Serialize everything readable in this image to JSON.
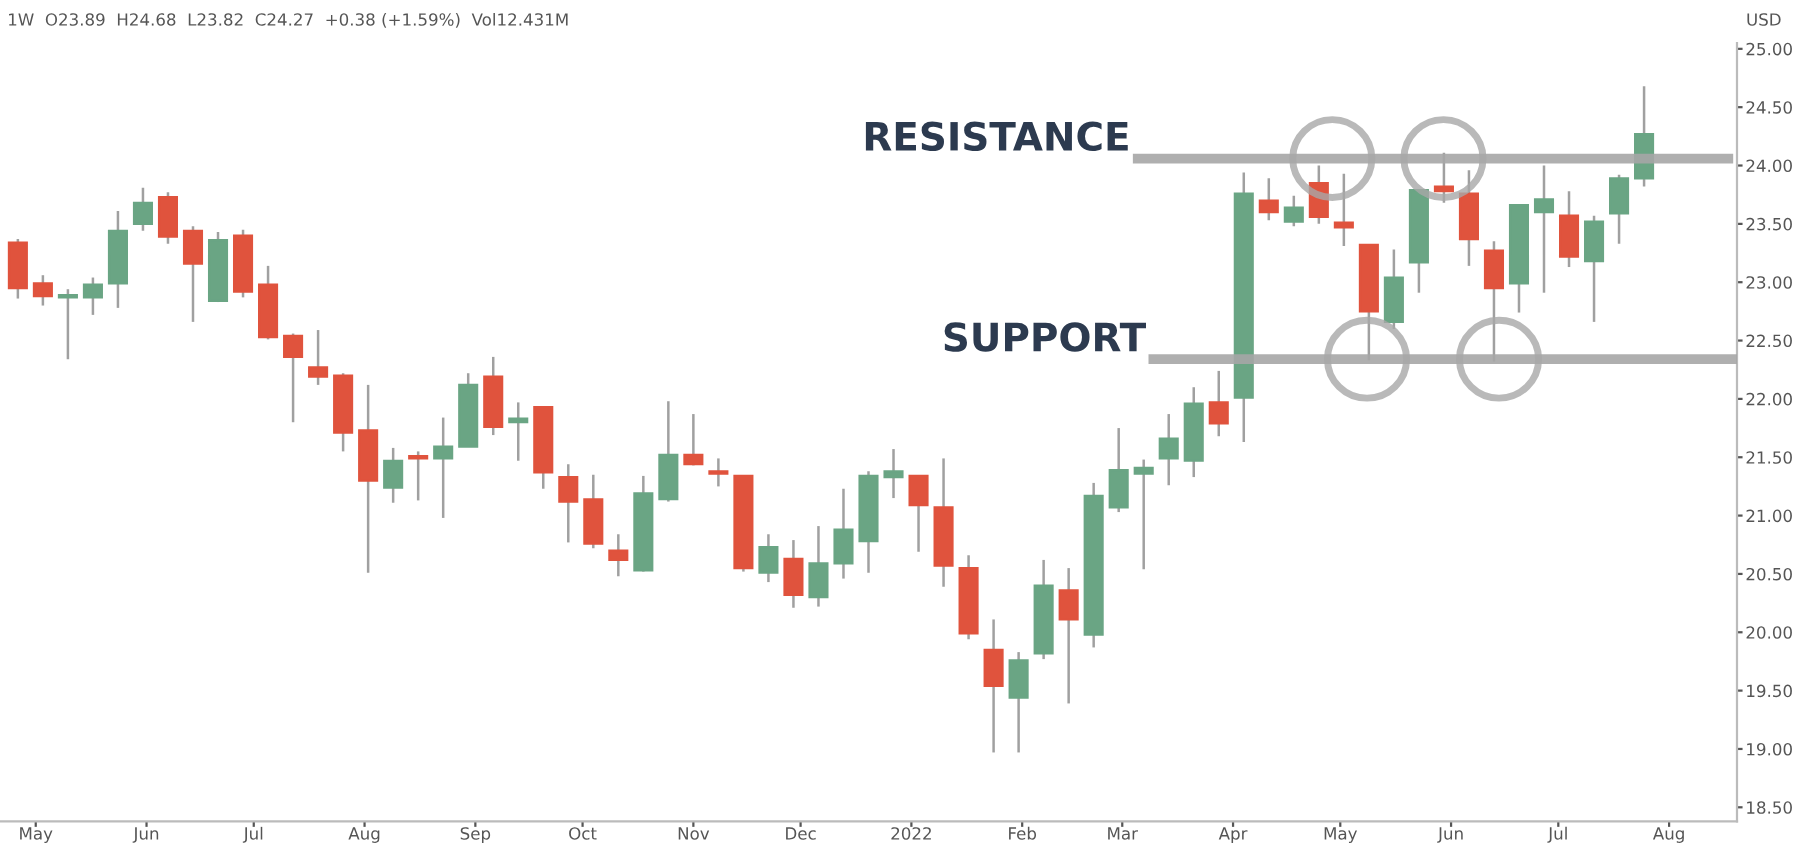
{
  "chart_data": {
    "type": "candlestick",
    "title": "1W  O23.89  H24.68  L23.82  C24.27  +0.38 (+1.59%)  Vol12.431M",
    "ylabel": "USD",
    "x": [
      "2021-04-26",
      "2021-05-03",
      "2021-05-10",
      "2021-05-17",
      "2021-05-24",
      "2021-05-31",
      "2021-06-07",
      "2021-06-14",
      "2021-06-21",
      "2021-06-28",
      "2021-07-05",
      "2021-07-12",
      "2021-07-19",
      "2021-07-26",
      "2021-08-02",
      "2021-08-09",
      "2021-08-16",
      "2021-08-23",
      "2021-08-30",
      "2021-09-06",
      "2021-09-13",
      "2021-09-20",
      "2021-09-27",
      "2021-10-04",
      "2021-10-11",
      "2021-10-18",
      "2021-10-25",
      "2021-11-01",
      "2021-11-08",
      "2021-11-15",
      "2021-11-22",
      "2021-11-29",
      "2021-12-06",
      "2021-12-13",
      "2021-12-20",
      "2021-12-27",
      "2022-01-03",
      "2022-01-10",
      "2022-01-17",
      "2022-01-24",
      "2022-01-31",
      "2022-02-07",
      "2022-02-14",
      "2022-02-21",
      "2022-02-28",
      "2022-03-07",
      "2022-03-14",
      "2022-03-21",
      "2022-03-28",
      "2022-04-04",
      "2022-04-11",
      "2022-04-18",
      "2022-04-25",
      "2022-05-02",
      "2022-05-09",
      "2022-05-16",
      "2022-05-23",
      "2022-05-30",
      "2022-06-06",
      "2022-06-13",
      "2022-06-20",
      "2022-06-27",
      "2022-07-04",
      "2022-07-11",
      "2022-07-18",
      "2022-07-25"
    ],
    "ohlc": [
      [
        23.34,
        23.37,
        22.86,
        22.95
      ],
      [
        22.99,
        23.06,
        22.8,
        22.88
      ],
      [
        22.87,
        22.94,
        22.34,
        22.88
      ],
      [
        22.87,
        23.04,
        22.72,
        22.98
      ],
      [
        22.99,
        23.61,
        22.78,
        23.44
      ],
      [
        23.5,
        23.81,
        23.44,
        23.68
      ],
      [
        23.73,
        23.77,
        23.33,
        23.39
      ],
      [
        23.44,
        23.48,
        22.66,
        23.16
      ],
      [
        22.84,
        23.43,
        22.83,
        23.36
      ],
      [
        23.4,
        23.45,
        22.87,
        22.92
      ],
      [
        22.98,
        23.14,
        22.51,
        22.53
      ],
      [
        22.54,
        22.56,
        21.8,
        22.36
      ],
      [
        22.27,
        22.59,
        22.12,
        22.19
      ],
      [
        22.2,
        22.22,
        21.55,
        21.71
      ],
      [
        21.73,
        22.12,
        20.51,
        21.3
      ],
      [
        21.24,
        21.58,
        21.11,
        21.47
      ],
      [
        21.51,
        21.55,
        21.13,
        21.49
      ],
      [
        21.49,
        21.84,
        20.98,
        21.59
      ],
      [
        21.59,
        22.22,
        21.59,
        22.12
      ],
      [
        22.19,
        22.36,
        21.69,
        21.76
      ],
      [
        21.8,
        21.97,
        21.47,
        21.83
      ],
      [
        21.93,
        21.93,
        21.23,
        21.37
      ],
      [
        21.33,
        21.44,
        20.77,
        21.12
      ],
      [
        21.14,
        21.35,
        20.72,
        20.76
      ],
      [
        20.7,
        20.84,
        20.48,
        20.62
      ],
      [
        20.53,
        21.34,
        20.52,
        21.19
      ],
      [
        21.14,
        21.98,
        21.12,
        21.52
      ],
      [
        21.52,
        21.87,
        21.43,
        21.44
      ],
      [
        21.38,
        21.49,
        21.25,
        21.36
      ],
      [
        21.34,
        21.34,
        20.52,
        20.55
      ],
      [
        20.51,
        20.84,
        20.43,
        20.73
      ],
      [
        20.63,
        20.79,
        20.21,
        20.32
      ],
      [
        20.3,
        20.91,
        20.22,
        20.59
      ],
      [
        20.59,
        21.23,
        20.46,
        20.88
      ],
      [
        20.78,
        21.38,
        20.51,
        21.34
      ],
      [
        21.33,
        21.57,
        21.15,
        21.38
      ],
      [
        21.34,
        21.34,
        20.69,
        21.09
      ],
      [
        21.07,
        21.49,
        20.39,
        20.57
      ],
      [
        20.55,
        20.66,
        19.94,
        19.99
      ],
      [
        19.85,
        20.11,
        18.97,
        19.54
      ],
      [
        19.44,
        19.83,
        18.97,
        19.76
      ],
      [
        19.82,
        20.62,
        19.77,
        20.4
      ],
      [
        20.36,
        20.55,
        19.39,
        20.11
      ],
      [
        19.98,
        21.28,
        19.87,
        21.17
      ],
      [
        21.07,
        21.75,
        21.03,
        21.39
      ],
      [
        21.36,
        21.48,
        20.54,
        21.41
      ],
      [
        21.49,
        21.87,
        21.26,
        21.66
      ],
      [
        21.47,
        22.1,
        21.33,
        21.96
      ],
      [
        21.97,
        22.24,
        21.68,
        21.79
      ],
      [
        22.01,
        23.94,
        21.63,
        23.76
      ],
      [
        23.7,
        23.89,
        23.53,
        23.6
      ],
      [
        23.52,
        23.74,
        23.48,
        23.64
      ],
      [
        23.85,
        24.0,
        23.5,
        23.56
      ],
      [
        23.51,
        23.93,
        23.31,
        23.47
      ],
      [
        23.32,
        23.32,
        22.33,
        22.75
      ],
      [
        22.66,
        23.28,
        22.6,
        23.04
      ],
      [
        23.17,
        23.79,
        22.91,
        23.79
      ],
      [
        23.82,
        24.11,
        23.68,
        23.78
      ],
      [
        23.76,
        23.96,
        23.14,
        23.37
      ],
      [
        23.27,
        23.35,
        22.32,
        22.95
      ],
      [
        22.99,
        23.66,
        22.74,
        23.66
      ],
      [
        23.6,
        24.0,
        22.91,
        23.71
      ],
      [
        23.57,
        23.78,
        23.13,
        23.22
      ],
      [
        23.18,
        23.57,
        22.66,
        23.52
      ],
      [
        23.59,
        23.92,
        23.33,
        23.89
      ],
      [
        23.89,
        24.68,
        23.82,
        24.27
      ]
    ],
    "colors": [
      "#e0533d",
      "#e0533d",
      "#6aa584",
      "#6aa584",
      "#6aa584",
      "#6aa584",
      "#e0533d",
      "#e0533d",
      "#6aa584",
      "#e0533d",
      "#e0533d",
      "#e0533d",
      "#e0533d",
      "#e0533d",
      "#e0533d",
      "#6aa584",
      "#e0533d",
      "#6aa584",
      "#6aa584",
      "#e0533d",
      "#6aa584",
      "#e0533d",
      "#e0533d",
      "#e0533d",
      "#e0533d",
      "#6aa584",
      "#6aa584",
      "#e0533d",
      "#e0533d",
      "#e0533d",
      "#6aa584",
      "#e0533d",
      "#6aa584",
      "#6aa584",
      "#6aa584",
      "#6aa584",
      "#e0533d",
      "#e0533d",
      "#e0533d",
      "#e0533d",
      "#6aa584",
      "#6aa584",
      "#e0533d",
      "#6aa584",
      "#6aa584",
      "#6aa584",
      "#6aa584",
      "#6aa584",
      "#e0533d",
      "#6aa584",
      "#e0533d",
      "#6aa584",
      "#e0533d",
      "#e0533d",
      "#e0533d",
      "#6aa584",
      "#6aa584",
      "#e0533d",
      "#e0533d",
      "#e0533d",
      "#6aa584",
      "#6aa584",
      "#e0533d",
      "#6aa584",
      "#6aa584",
      "#6aa584"
    ],
    "xlim": [
      "2021-04-21",
      "2022-08-20"
    ],
    "xticks": [
      {
        "value": "2021-05-01",
        "label": "May"
      },
      {
        "value": "2021-06-01",
        "label": "Jun"
      },
      {
        "value": "2021-07-01",
        "label": "Jul"
      },
      {
        "value": "2021-08-01",
        "label": "Aug"
      },
      {
        "value": "2021-09-01",
        "label": "Sep"
      },
      {
        "value": "2021-10-01",
        "label": "Oct"
      },
      {
        "value": "2021-11-01",
        "label": "Nov"
      },
      {
        "value": "2021-12-01",
        "label": "Dec"
      },
      {
        "value": "2022-01-01",
        "label": "2022"
      },
      {
        "value": "2022-02-01",
        "label": "Feb"
      },
      {
        "value": "2022-03-01",
        "label": "Mar"
      },
      {
        "value": "2022-04-01",
        "label": "Apr"
      },
      {
        "value": "2022-05-01",
        "label": "May"
      },
      {
        "value": "2022-06-01",
        "label": "Jun"
      },
      {
        "value": "2022-07-01",
        "label": "Jul"
      },
      {
        "value": "2022-08-01",
        "label": "Aug"
      }
    ],
    "ylim": [
      18.38,
      25.05
    ],
    "yticks": [
      {
        "value": 18.5,
        "label": "18.50"
      },
      {
        "value": 19,
        "label": "19.00"
      },
      {
        "value": 19.5,
        "label": "19.50"
      },
      {
        "value": 20,
        "label": "20.00"
      },
      {
        "value": 20.5,
        "label": "20.50"
      },
      {
        "value": 21,
        "label": "21.00"
      },
      {
        "value": 21.5,
        "label": "21.50"
      },
      {
        "value": 22,
        "label": "22.00"
      },
      {
        "value": 22.5,
        "label": "22.50"
      },
      {
        "value": 23,
        "label": "23.00"
      },
      {
        "value": 23.5,
        "label": "23.50"
      },
      {
        "value": 24,
        "label": "24.00"
      },
      {
        "value": 24.5,
        "label": "24.50"
      },
      {
        "value": 25,
        "label": "25.00"
      }
    ],
    "ref_lines": [
      {
        "axis": "y",
        "value": 24.06,
        "label": "RESISTANCE",
        "color": "#a6a6a6"
      },
      {
        "axis": "y",
        "value": 22.34,
        "label": "SUPPORT",
        "color": "#a6a6a6"
      }
    ],
    "grid": false
  }
}
